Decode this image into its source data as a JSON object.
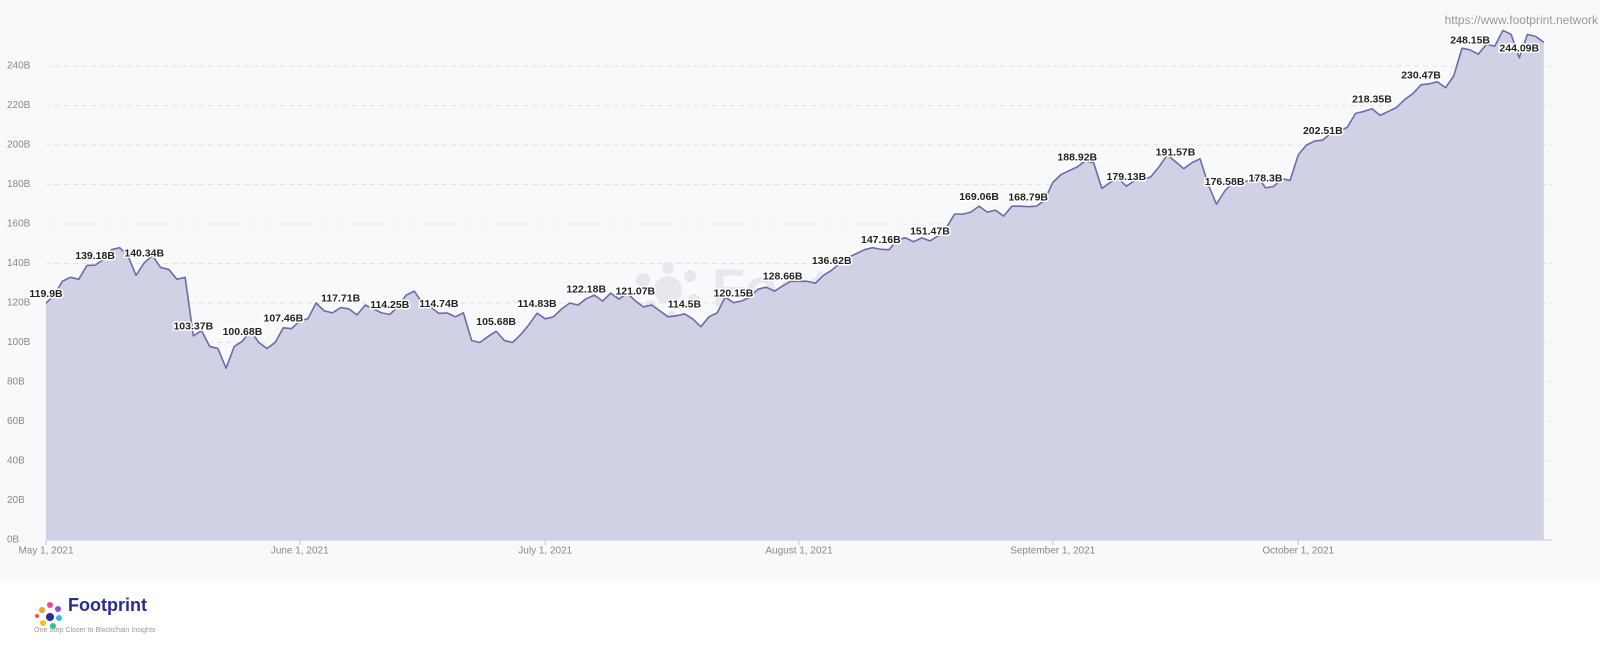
{
  "chart_data": {
    "type": "area",
    "x": [
      "2021-05-01",
      "2021-05-02",
      "2021-05-03",
      "2021-05-04",
      "2021-05-05",
      "2021-05-06",
      "2021-05-07",
      "2021-05-08",
      "2021-05-09",
      "2021-05-10",
      "2021-05-11",
      "2021-05-12",
      "2021-05-13",
      "2021-05-14",
      "2021-05-15",
      "2021-05-16",
      "2021-05-17",
      "2021-05-18",
      "2021-05-19",
      "2021-05-20",
      "2021-05-21",
      "2021-05-22",
      "2021-05-23",
      "2021-05-24",
      "2021-05-25",
      "2021-05-26",
      "2021-05-27",
      "2021-05-28",
      "2021-05-29",
      "2021-05-30",
      "2021-05-31",
      "2021-06-01",
      "2021-06-02",
      "2021-06-03",
      "2021-06-04",
      "2021-06-05",
      "2021-06-06",
      "2021-06-07",
      "2021-06-08",
      "2021-06-09",
      "2021-06-10",
      "2021-06-11",
      "2021-06-12",
      "2021-06-13",
      "2021-06-14",
      "2021-06-15",
      "2021-06-16",
      "2021-06-17",
      "2021-06-18",
      "2021-06-19",
      "2021-06-20",
      "2021-06-21",
      "2021-06-22",
      "2021-06-23",
      "2021-06-24",
      "2021-06-25",
      "2021-06-26",
      "2021-06-27",
      "2021-06-28",
      "2021-06-29",
      "2021-06-30",
      "2021-07-01",
      "2021-07-02",
      "2021-07-03",
      "2021-07-04",
      "2021-07-05",
      "2021-07-06",
      "2021-07-07",
      "2021-07-08",
      "2021-07-09",
      "2021-07-10",
      "2021-07-11",
      "2021-07-12",
      "2021-07-13",
      "2021-07-14",
      "2021-07-15",
      "2021-07-16",
      "2021-07-17",
      "2021-07-18",
      "2021-07-19",
      "2021-07-20",
      "2021-07-21",
      "2021-07-22",
      "2021-07-23",
      "2021-07-24",
      "2021-07-25",
      "2021-07-26",
      "2021-07-27",
      "2021-07-28",
      "2021-07-29",
      "2021-07-30",
      "2021-07-31",
      "2021-08-01",
      "2021-08-02",
      "2021-08-03",
      "2021-08-04",
      "2021-08-05",
      "2021-08-06",
      "2021-08-07",
      "2021-08-08",
      "2021-08-09",
      "2021-08-10",
      "2021-08-11",
      "2021-08-12",
      "2021-08-13",
      "2021-08-14",
      "2021-08-15",
      "2021-08-16",
      "2021-08-17",
      "2021-08-18",
      "2021-08-19",
      "2021-08-20",
      "2021-08-21",
      "2021-08-22",
      "2021-08-23",
      "2021-08-24",
      "2021-08-25",
      "2021-08-26",
      "2021-08-27",
      "2021-08-28",
      "2021-08-29",
      "2021-08-30",
      "2021-08-31",
      "2021-09-01",
      "2021-09-02",
      "2021-09-03",
      "2021-09-04",
      "2021-09-05",
      "2021-09-06",
      "2021-09-07",
      "2021-09-08",
      "2021-09-09",
      "2021-09-10",
      "2021-09-11",
      "2021-09-12",
      "2021-09-13",
      "2021-09-14",
      "2021-09-15",
      "2021-09-16",
      "2021-09-17",
      "2021-09-18",
      "2021-09-19",
      "2021-09-20",
      "2021-09-21",
      "2021-09-22",
      "2021-09-23",
      "2021-09-24",
      "2021-09-25",
      "2021-09-26",
      "2021-09-27",
      "2021-09-28",
      "2021-09-29",
      "2021-09-30",
      "2021-10-01",
      "2021-10-02",
      "2021-10-03",
      "2021-10-04",
      "2021-10-05",
      "2021-10-06",
      "2021-10-07",
      "2021-10-08",
      "2021-10-09",
      "2021-10-10",
      "2021-10-11",
      "2021-10-12",
      "2021-10-13",
      "2021-10-14",
      "2021-10-15",
      "2021-10-16",
      "2021-10-17",
      "2021-10-18",
      "2021-10-19",
      "2021-10-20",
      "2021-10-21",
      "2021-10-22",
      "2021-10-23",
      "2021-10-24",
      "2021-10-25",
      "2021-10-26",
      "2021-10-27",
      "2021-10-28",
      "2021-10-29",
      "2021-10-30",
      "2021-10-31"
    ],
    "values": [
      119.9,
      124,
      131,
      133,
      132,
      139,
      139.18,
      142,
      147,
      148,
      144,
      134,
      140.34,
      144,
      138,
      137,
      132,
      133,
      103.37,
      106,
      98,
      97,
      87,
      98,
      100.68,
      106,
      100,
      97,
      100,
      107.46,
      107,
      111,
      112,
      120,
      116,
      115,
      117.71,
      117,
      114,
      119,
      117,
      115,
      114.25,
      118,
      124,
      126,
      120,
      118,
      114.74,
      115,
      113,
      115,
      101,
      100,
      103,
      105.68,
      101,
      100,
      104,
      109,
      114.83,
      112,
      113,
      117,
      120,
      119,
      122.18,
      124,
      121,
      125,
      122,
      125,
      121.07,
      118,
      119,
      116,
      113,
      113.5,
      114.5,
      112,
      108,
      113,
      115,
      123,
      120.15,
      121,
      123,
      127,
      128,
      126,
      128.66,
      131,
      131,
      131,
      130,
      134,
      136.62,
      140,
      143,
      145,
      147,
      148,
      147.16,
      147,
      152,
      153,
      151,
      153,
      151.47,
      154,
      158,
      165,
      165,
      166,
      169.06,
      166,
      167,
      164,
      169,
      169,
      168.79,
      169,
      172,
      181,
      185,
      187,
      188.92,
      192,
      191,
      178,
      181,
      183,
      179.13,
      182,
      182,
      184,
      189,
      195,
      191.57,
      188,
      191,
      193,
      180,
      170,
      176.58,
      181,
      181,
      182,
      184,
      178.3,
      179,
      183,
      182,
      195,
      200,
      202,
      202.51,
      206,
      207,
      209,
      216,
      217,
      218.35,
      215,
      217,
      219,
      223,
      226,
      230.47,
      231,
      232,
      229,
      235,
      249,
      248.15,
      246,
      251,
      250,
      258,
      256,
      244.09,
      256,
      255,
      252
    ],
    "value_labels": [
      "119.9B",
      null,
      null,
      null,
      null,
      null,
      "139.18B",
      null,
      null,
      null,
      null,
      null,
      "140.34B",
      null,
      null,
      null,
      null,
      null,
      "103.37B",
      null,
      null,
      null,
      null,
      null,
      "100.68B",
      null,
      null,
      null,
      null,
      "107.46B",
      null,
      null,
      null,
      null,
      null,
      null,
      "117.71B",
      null,
      null,
      null,
      null,
      null,
      "114.25B",
      null,
      null,
      null,
      null,
      null,
      "114.74B",
      null,
      null,
      null,
      null,
      null,
      null,
      "105.68B",
      null,
      null,
      null,
      null,
      "114.83B",
      null,
      null,
      null,
      null,
      null,
      "122.18B",
      null,
      null,
      null,
      null,
      null,
      "121.07B",
      null,
      null,
      null,
      null,
      null,
      "114.5B",
      null,
      null,
      null,
      null,
      null,
      "120.15B",
      null,
      null,
      null,
      null,
      null,
      "128.66B",
      null,
      null,
      null,
      null,
      null,
      "136.62B",
      null,
      null,
      null,
      null,
      null,
      "147.16B",
      null,
      null,
      null,
      null,
      null,
      "151.47B",
      null,
      null,
      null,
      null,
      null,
      "169.06B",
      null,
      null,
      null,
      null,
      null,
      "168.79B",
      null,
      null,
      null,
      null,
      null,
      "188.92B",
      null,
      null,
      null,
      null,
      null,
      "179.13B",
      null,
      null,
      null,
      null,
      null,
      "191.57B",
      null,
      null,
      null,
      null,
      null,
      "176.58B",
      null,
      null,
      null,
      null,
      "178.3B",
      null,
      null,
      null,
      null,
      null,
      null,
      "202.51B",
      null,
      null,
      null,
      null,
      null,
      "218.35B",
      null,
      null,
      null,
      null,
      null,
      "230.47B",
      null,
      null,
      null,
      null,
      null,
      "248.15B",
      null,
      null,
      null,
      null,
      null,
      "244.09B",
      null,
      null,
      null
    ],
    "color": "#6e6ca8",
    "fill_color": "#d1d1e6",
    "xlim": [
      "2021-05-01",
      "2021-11-01"
    ],
    "xticks": [
      {
        "value": "2021-05-01",
        "label": "May 1, 2021"
      },
      {
        "value": "2021-06-01",
        "label": "June 1, 2021"
      },
      {
        "value": "2021-07-01",
        "label": "July 1, 2021"
      },
      {
        "value": "2021-08-01",
        "label": "August 1, 2021"
      },
      {
        "value": "2021-09-01",
        "label": "September 1, 2021"
      },
      {
        "value": "2021-10-01",
        "label": "October 1, 2021"
      }
    ],
    "ylim": [
      0,
      260
    ],
    "yticks": [
      {
        "value": 0,
        "label": "0B"
      },
      {
        "value": 20,
        "label": "20B"
      },
      {
        "value": 40,
        "label": "40B"
      },
      {
        "value": 60,
        "label": "60B"
      },
      {
        "value": 80,
        "label": "80B"
      },
      {
        "value": 100,
        "label": "100B"
      },
      {
        "value": 120,
        "label": "120B"
      },
      {
        "value": 140,
        "label": "140B"
      },
      {
        "value": 160,
        "label": "160B"
      },
      {
        "value": 180,
        "label": "180B"
      },
      {
        "value": 200,
        "label": "200B"
      },
      {
        "value": 220,
        "label": "220B"
      },
      {
        "value": 240,
        "label": "240B"
      }
    ],
    "grid": true
  },
  "watermark": "Footprint",
  "source_url": "https://www.footprint.network",
  "footer": {
    "brand": "Footprint",
    "tagline": "One Step Closer to Blockchain Insights"
  }
}
